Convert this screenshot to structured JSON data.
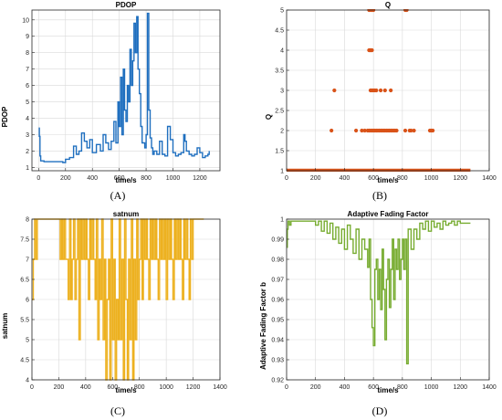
{
  "captions": [
    "(A)",
    "(B)",
    "(C)",
    "(D)"
  ],
  "chart_data": [
    {
      "id": "A",
      "type": "line",
      "title": "PDOP",
      "xlabel": "time/s",
      "ylabel": "PDOP",
      "color": "#1f6fbf",
      "grid": true,
      "xlim": [
        -50,
        1350
      ],
      "ylim": [
        0.8,
        10.6
      ],
      "xticks": [
        0,
        200,
        400,
        600,
        800,
        1000,
        1200
      ],
      "yticks": [
        1,
        2,
        3,
        4,
        5,
        6,
        7,
        8,
        9,
        10
      ],
      "step": true,
      "series": [
        {
          "x": [
            0,
            5,
            10,
            15,
            40,
            100,
            180,
            200,
            230,
            260,
            280,
            300,
            320,
            340,
            360,
            380,
            400,
            430,
            460,
            480,
            500,
            520,
            540,
            560,
            575,
            590,
            600,
            610,
            620,
            630,
            640,
            650,
            660,
            670,
            680,
            690,
            700,
            710,
            720,
            730,
            740,
            750,
            760,
            770,
            790,
            800,
            810,
            820,
            830,
            840,
            850,
            860,
            880,
            900,
            920,
            940,
            960,
            980,
            1000,
            1020,
            1040,
            1060,
            1080,
            1090,
            1100,
            1120,
            1140,
            1160,
            1180,
            1200,
            1220,
            1240,
            1260,
            1270
          ],
          "y": [
            3.4,
            2.9,
            1.7,
            1.4,
            1.35,
            1.35,
            1.3,
            1.5,
            1.6,
            2.3,
            1.8,
            2.0,
            3.1,
            2.6,
            2.2,
            2.7,
            1.9,
            2.4,
            2.0,
            3.0,
            2.5,
            2.1,
            2.6,
            3.8,
            2.5,
            5.0,
            3.5,
            6.5,
            3.0,
            7.0,
            4.5,
            3.8,
            6.0,
            5.0,
            8.2,
            6.0,
            7.5,
            9.8,
            8.0,
            10.2,
            7.0,
            5.5,
            3.5,
            2.5,
            2.2,
            3.0,
            10.4,
            4.5,
            2.8,
            2.2,
            1.8,
            2.0,
            1.8,
            2.6,
            1.8,
            1.7,
            3.5,
            2.7,
            1.9,
            1.7,
            1.8,
            1.9,
            3.0,
            2.6,
            2.0,
            1.8,
            1.7,
            1.8,
            2.2,
            1.9,
            1.6,
            1.7,
            1.8,
            2.0
          ]
        }
      ]
    },
    {
      "id": "B",
      "type": "scatter",
      "title": "Q",
      "xlabel": "time/s",
      "ylabel": "Q",
      "color": "#d95319",
      "grid": true,
      "xlim": [
        0,
        1400
      ],
      "ylim": [
        1,
        5
      ],
      "xticks": [
        0,
        200,
        400,
        600,
        800,
        1000,
        1200,
        1400
      ],
      "yticks": [
        1,
        1.5,
        2,
        2.5,
        3,
        3.5,
        4,
        4.5,
        5
      ],
      "baseline": {
        "y": 1,
        "x_from": 0,
        "x_to": 1270
      },
      "series": [
        {
          "x": [
            570,
            580,
            590,
            600,
            820,
            830,
            570,
            575,
            580,
            585,
            590,
            330,
            580,
            590,
            600,
            610,
            620,
            650,
            680,
            720,
            310,
            480,
            520,
            540,
            560,
            570,
            580,
            590,
            600,
            610,
            620,
            630,
            640,
            650,
            660,
            670,
            680,
            690,
            700,
            710,
            720,
            730,
            740,
            750,
            760,
            820,
            850,
            860,
            880,
            990,
            1000,
            1010
          ],
          "y": [
            5,
            5,
            5,
            5,
            5,
            5,
            4,
            4,
            4,
            4,
            4,
            3,
            3,
            3,
            3,
            3,
            3,
            3,
            3,
            3,
            2,
            2,
            2,
            2,
            2,
            2,
            2,
            2,
            2,
            2,
            2,
            2,
            2,
            2,
            2,
            2,
            2,
            2,
            2,
            2,
            2,
            2,
            2,
            2,
            2,
            2,
            2,
            2,
            2,
            2,
            2,
            2
          ]
        }
      ]
    },
    {
      "id": "C",
      "type": "line",
      "title": "satnum",
      "xlabel": "time/s",
      "ylabel": "satnum",
      "color": "#edb120",
      "grid": true,
      "xlim": [
        0,
        1400
      ],
      "ylim": [
        4,
        8
      ],
      "xticks": [
        0,
        200,
        400,
        600,
        800,
        1000,
        1200,
        1400
      ],
      "yticks": [
        4,
        4.5,
        5,
        5.5,
        6,
        6.5,
        7,
        7.5,
        8
      ],
      "step": true,
      "series": [
        {
          "x": [
            0,
            10,
            20,
            30,
            40,
            50,
            210,
            220,
            230,
            240,
            250,
            260,
            270,
            280,
            290,
            300,
            310,
            320,
            330,
            340,
            350,
            360,
            370,
            380,
            390,
            400,
            410,
            420,
            430,
            440,
            450,
            460,
            470,
            480,
            490,
            500,
            510,
            520,
            530,
            540,
            550,
            560,
            570,
            580,
            590,
            600,
            610,
            620,
            630,
            640,
            650,
            660,
            670,
            680,
            690,
            700,
            710,
            720,
            730,
            740,
            750,
            760,
            770,
            780,
            790,
            800,
            810,
            820,
            830,
            840,
            850,
            860,
            870,
            880,
            890,
            900,
            910,
            920,
            930,
            940,
            950,
            960,
            970,
            980,
            990,
            1000,
            1010,
            1020,
            1030,
            1040,
            1050,
            1060,
            1070,
            1080,
            1090,
            1100,
            1110,
            1120,
            1130,
            1140,
            1150,
            1160,
            1170,
            1180,
            1190,
            1200,
            1210,
            1280
          ],
          "y": [
            6,
            7,
            8,
            7,
            8,
            8,
            7,
            8,
            7,
            8,
            7,
            7,
            6,
            8,
            6,
            7,
            8,
            6,
            7,
            8,
            5,
            8,
            7,
            8,
            7,
            8,
            7,
            6,
            8,
            7,
            8,
            7,
            6,
            8,
            5,
            7,
            6,
            8,
            5,
            7,
            4,
            6,
            7,
            4,
            8,
            5,
            7,
            4,
            6,
            5,
            8,
            5,
            7,
            4,
            8,
            6,
            4,
            7,
            5,
            8,
            4,
            7,
            5,
            8,
            6,
            7,
            8,
            6,
            8,
            7,
            8,
            7,
            6,
            8,
            7,
            8,
            7,
            8,
            7,
            6,
            8,
            7,
            8,
            7,
            8,
            6,
            8,
            7,
            8,
            7,
            6,
            8,
            7,
            8,
            7,
            8,
            7,
            6,
            8,
            7,
            8,
            7,
            6,
            8,
            7,
            8,
            8,
            8
          ]
        }
      ]
    },
    {
      "id": "D",
      "type": "line",
      "title": "Adaptive Fading Factor",
      "xlabel": "time/s",
      "ylabel": "Adaptive Fading Factor b",
      "color": "#77ac30",
      "grid": true,
      "xlim": [
        0,
        1400
      ],
      "ylim": [
        0.92,
        1.0
      ],
      "xticks": [
        0,
        200,
        400,
        600,
        800,
        1000,
        1200,
        1400
      ],
      "yticks": [
        0.92,
        0.93,
        0.94,
        0.95,
        0.96,
        0.97,
        0.98,
        0.99,
        1
      ],
      "step": true,
      "series": [
        {
          "x": [
            0,
            5,
            10,
            20,
            30,
            200,
            220,
            240,
            260,
            280,
            300,
            320,
            340,
            360,
            380,
            400,
            420,
            440,
            460,
            480,
            500,
            520,
            540,
            560,
            570,
            580,
            590,
            600,
            610,
            620,
            630,
            640,
            650,
            660,
            670,
            680,
            690,
            700,
            710,
            720,
            730,
            740,
            750,
            760,
            770,
            780,
            790,
            800,
            810,
            820,
            830,
            840,
            860,
            880,
            900,
            920,
            940,
            960,
            980,
            1000,
            1020,
            1040,
            1060,
            1080,
            1100,
            1120,
            1140,
            1160,
            1180,
            1200,
            1210,
            1270
          ],
          "y": [
            0.986,
            0.995,
            0.999,
            0.997,
            0.999,
            0.997,
            0.999,
            0.994,
            0.999,
            0.993,
            0.998,
            0.99,
            0.996,
            0.988,
            0.995,
            0.985,
            0.997,
            0.99,
            0.983,
            0.995,
            0.98,
            0.99,
            0.985,
            0.976,
            0.99,
            0.96,
            0.946,
            0.937,
            0.975,
            0.98,
            0.96,
            0.975,
            0.955,
            0.985,
            0.965,
            0.94,
            0.97,
            0.98,
            0.956,
            0.975,
            0.99,
            0.96,
            0.985,
            0.975,
            0.99,
            0.97,
            0.98,
            0.99,
            0.975,
            0.99,
            0.928,
            0.995,
            0.985,
            0.995,
            0.99,
            0.998,
            0.995,
            0.999,
            0.994,
            0.999,
            0.996,
            0.998,
            0.995,
            0.999,
            0.997,
            0.998,
            0.999,
            0.997,
            0.999,
            0.998,
            0.998,
            0.998
          ]
        }
      ]
    }
  ]
}
